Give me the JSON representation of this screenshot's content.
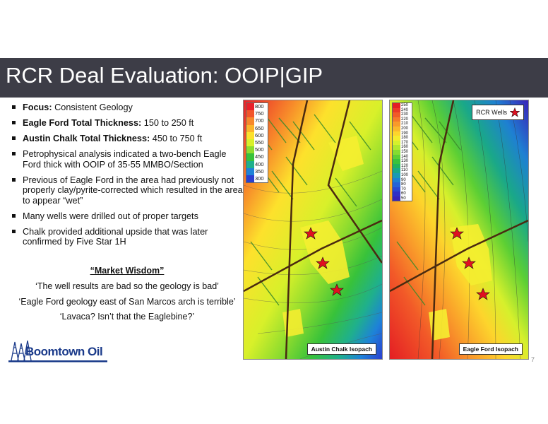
{
  "slide": {
    "title": "RCR Deal Evaluation: OOIP|GIP",
    "page_number": "7"
  },
  "bullets": [
    {
      "bold": "Focus:",
      "text": " Consistent Geology"
    },
    {
      "bold": "Eagle Ford Total Thickness:",
      "text": " 150 to 250 ft"
    },
    {
      "bold": "Austin Chalk Total Thickness:",
      "text": " 450 to 750 ft"
    },
    {
      "bold": "",
      "text": "Petrophysical analysis indicated a two-bench Eagle Ford  thick with OOIP of 35-55 MMBO/Section"
    },
    {
      "bold": "",
      "text": "Previous of Eagle Ford in the area had previously not properly clay/pyrite-corrected which resulted in the area to appear “wet”"
    },
    {
      "bold": "",
      "text": "Many wells were drilled out of proper targets"
    },
    {
      "bold": "",
      "text": "Chalk provided additional upside that was later confirmed by Five Star 1H"
    }
  ],
  "wisdom": {
    "heading": "“Market Wisdom”",
    "quotes": [
      "‘The well results are bad so the geology is bad’",
      "‘Eagle Ford geology east of San Marcos arch is terrible’",
      "‘Lavaca? Isn’t that the Eaglebine?’"
    ]
  },
  "logo": {
    "text": "Boomtown Oil"
  },
  "maps": {
    "austin_chalk": {
      "label": "Austin Chalk Isopach",
      "legend": [
        {
          "value": "800",
          "color": "#e8202a"
        },
        {
          "value": "750",
          "color": "#f2552a"
        },
        {
          "value": "700",
          "color": "#f7882a"
        },
        {
          "value": "650",
          "color": "#fbb42a"
        },
        {
          "value": "600",
          "color": "#fde12c"
        },
        {
          "value": "550",
          "color": "#d8f02a"
        },
        {
          "value": "500",
          "color": "#8edc2e"
        },
        {
          "value": "450",
          "color": "#38c23a"
        },
        {
          "value": "400",
          "color": "#1fb08c"
        },
        {
          "value": "350",
          "color": "#1e82d8"
        },
        {
          "value": "300",
          "color": "#2b3fd0"
        }
      ]
    },
    "eagle_ford": {
      "label": "Eagle Ford Isopach",
      "wells_label": "RCR Wells",
      "legend": [
        {
          "value": "250",
          "color": "#e41e24"
        },
        {
          "value": "240",
          "color": "#ec3a26"
        },
        {
          "value": "230",
          "color": "#f25a28"
        },
        {
          "value": "220",
          "color": "#f67a2a"
        },
        {
          "value": "210",
          "color": "#f99a2a"
        },
        {
          "value": "200",
          "color": "#fbb82b"
        },
        {
          "value": "190",
          "color": "#fdd52c"
        },
        {
          "value": "180",
          "color": "#f4ec2c"
        },
        {
          "value": "170",
          "color": "#d6f02c"
        },
        {
          "value": "160",
          "color": "#b0e82e"
        },
        {
          "value": "150",
          "color": "#86dc30"
        },
        {
          "value": "140",
          "color": "#5ccf34"
        },
        {
          "value": "130",
          "color": "#3bc23c"
        },
        {
          "value": "120",
          "color": "#22b45a"
        },
        {
          "value": "110",
          "color": "#1aa888"
        },
        {
          "value": "100",
          "color": "#1a9ab4"
        },
        {
          "value": "90",
          "color": "#1e80d2"
        },
        {
          "value": "80",
          "color": "#2464d8"
        },
        {
          "value": "70",
          "color": "#2a48d2"
        },
        {
          "value": "60",
          "color": "#3030c8"
        },
        {
          "value": "50",
          "color": "#3a22b8"
        }
      ]
    }
  },
  "colors": {
    "title_bar": "#3d3d47",
    "well_star": "#e01020",
    "logo": "#1a3a8a"
  }
}
